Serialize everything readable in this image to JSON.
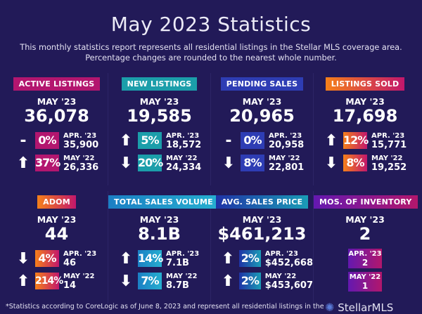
{
  "header": {
    "title": "May 2023 Statistics",
    "subtitle_line1": "This monthly statistics report represents all residential listings in the Stellar MLS coverage area.",
    "subtitle_line2": "Percentage changes are rounded to the nearest whole number."
  },
  "cards": [
    {
      "label": "ACTIVE LISTINGS",
      "color": "#b3166f",
      "period": "MAY '23",
      "value": "36,078",
      "rows": [
        {
          "dir": "flat",
          "pct": "0%",
          "label": "APR. '23",
          "value": "35,900"
        },
        {
          "dir": "up",
          "pct": "37%",
          "label": "MAY '22",
          "value": "26,336"
        }
      ]
    },
    {
      "label": "NEW LISTINGS",
      "color": "#1b9eaa",
      "period": "MAY '23",
      "value": "19,585",
      "rows": [
        {
          "dir": "up",
          "pct": "5%",
          "label": "APR. '23",
          "value": "18,572"
        },
        {
          "dir": "down",
          "pct": "20%",
          "label": "MAY '22",
          "value": "24,334"
        }
      ]
    },
    {
      "label": "PENDING SALES",
      "color": "#2e3db4",
      "period": "MAY '23",
      "value": "20,965",
      "rows": [
        {
          "dir": "flat",
          "pct": "0%",
          "label": "APR. '23",
          "value": "20,958"
        },
        {
          "dir": "down",
          "pct": "8%",
          "label": "MAY '22",
          "value": "22,801"
        }
      ]
    },
    {
      "label": "LISTINGS SOLD",
      "color": "linear-gradient(90deg,#f5801a,#c2176c)",
      "period": "MAY '23",
      "value": "17,698",
      "rows": [
        {
          "dir": "up",
          "pct": "12%",
          "label": "APR. '23",
          "value": "15,771"
        },
        {
          "dir": "down",
          "pct": "8%",
          "label": "MAY '22",
          "value": "19,252"
        }
      ]
    },
    {
      "label": "ADOM",
      "color": "linear-gradient(90deg,#f5801a,#c2176c)",
      "period": "MAY '23",
      "value": "44",
      "rows": [
        {
          "dir": "down",
          "pct": "4%",
          "label": "APR. '23",
          "value": "46"
        },
        {
          "dir": "up",
          "pct": "214%",
          "label": "MAY '22",
          "value": "14"
        }
      ]
    },
    {
      "label": "TOTAL SALES VOLUME",
      "color": "linear-gradient(90deg,#1b7fc4,#26afd0)",
      "period": "MAY '23",
      "value": "8.1B",
      "rows": [
        {
          "dir": "up",
          "pct": "14%",
          "label": "APR. '23",
          "value": "7.1B"
        },
        {
          "dir": "down",
          "pct": "7%",
          "label": "MAY '22",
          "value": "8.7B"
        }
      ]
    },
    {
      "label": "AVG. SALES PRICE",
      "color": "linear-gradient(90deg,#1f33a6,#1a9cb6)",
      "period": "MAY '23",
      "value": "$461,213",
      "rows": [
        {
          "dir": "up",
          "pct": "2%",
          "label": "APR. '23",
          "value": "$452,668"
        },
        {
          "dir": "up",
          "pct": "2%",
          "label": "MAY '22",
          "value": "$453,607"
        }
      ]
    },
    {
      "label": "MOS. OF INVENTORY",
      "color": "linear-gradient(90deg,#6418b0,#b2176c)",
      "period": "MAY '23",
      "value": "2",
      "inventory": [
        {
          "label": "APR. '23",
          "value": "2"
        },
        {
          "label": "MAY '22",
          "value": "1"
        }
      ]
    }
  ],
  "footer": {
    "note": "*Statistics according to CoreLogic as of June 8, 2023 and represent all residential listings in the",
    "logo": "StellarMLS"
  }
}
